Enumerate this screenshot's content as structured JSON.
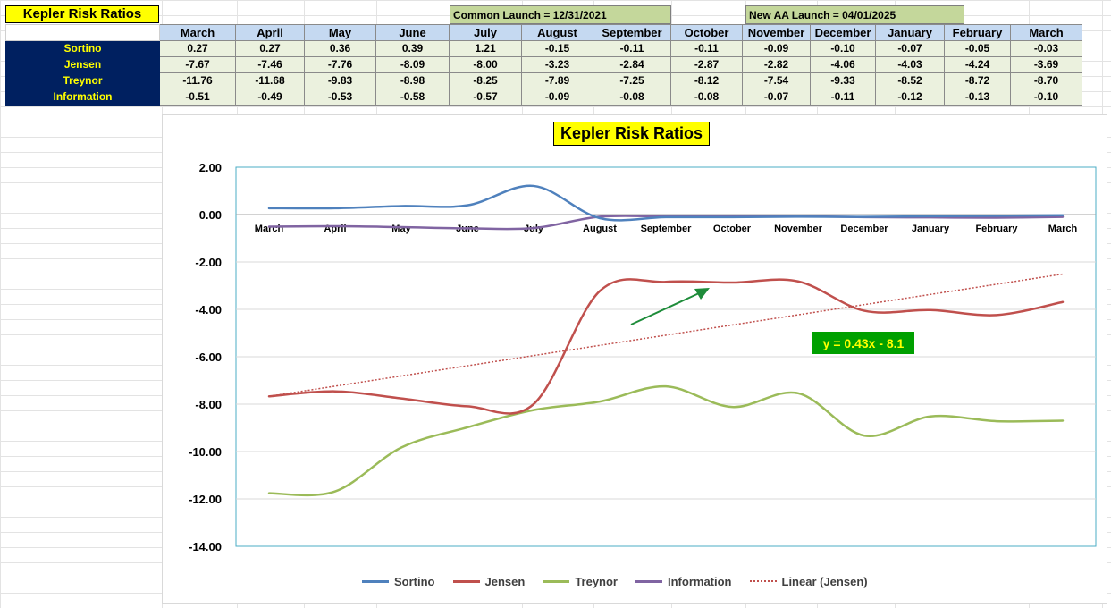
{
  "sheet": {
    "title": "Kepler Risk Ratios",
    "common_launch": "Common Launch = 12/31/2021",
    "new_aa_launch": "New AA Launch = 04/01/2025",
    "months": [
      "March",
      "April",
      "May",
      "June",
      "July",
      "August",
      "September",
      "October",
      "November",
      "December",
      "January",
      "February",
      "March"
    ],
    "rows": [
      {
        "label": "Sortino",
        "values": [
          "0.27",
          "0.27",
          "0.36",
          "0.39",
          "1.21",
          "-0.15",
          "-0.11",
          "-0.11",
          "-0.09",
          "-0.10",
          "-0.07",
          "-0.05",
          "-0.03"
        ]
      },
      {
        "label": "Jensen",
        "values": [
          "-7.67",
          "-7.46",
          "-7.76",
          "-8.09",
          "-8.00",
          "-3.23",
          "-2.84",
          "-2.87",
          "-2.82",
          "-4.06",
          "-4.03",
          "-4.24",
          "-3.69"
        ]
      },
      {
        "label": "Treynor",
        "values": [
          "-11.76",
          "-11.68",
          "-9.83",
          "-8.98",
          "-8.25",
          "-7.89",
          "-7.25",
          "-8.12",
          "-7.54",
          "-9.33",
          "-8.52",
          "-8.72",
          "-8.70"
        ]
      },
      {
        "label": "Information",
        "values": [
          "-0.51",
          "-0.49",
          "-0.53",
          "-0.58",
          "-0.57",
          "-0.09",
          "-0.08",
          "-0.08",
          "-0.07",
          "-0.11",
          "-0.12",
          "-0.13",
          "-0.10"
        ]
      }
    ]
  },
  "chart_data": {
    "type": "line",
    "title": "Kepler Risk Ratios",
    "categories": [
      "March",
      "April",
      "May",
      "June",
      "July",
      "August",
      "September",
      "October",
      "November",
      "December",
      "January",
      "February",
      "March"
    ],
    "ylim": [
      -14,
      2
    ],
    "yticks": [
      "2.00",
      "0.00",
      "-2.00",
      "-4.00",
      "-6.00",
      "-8.00",
      "-10.00",
      "-12.00",
      "-14.00"
    ],
    "ytick_values": [
      2,
      0,
      -2,
      -4,
      -6,
      -8,
      -10,
      -12,
      -14
    ],
    "grid": true,
    "legend_position": "bottom",
    "series": [
      {
        "name": "Sortino",
        "color": "#4f81bd",
        "values": [
          0.27,
          0.27,
          0.36,
          0.39,
          1.21,
          -0.15,
          -0.11,
          -0.11,
          -0.09,
          -0.1,
          -0.07,
          -0.05,
          -0.03
        ]
      },
      {
        "name": "Jensen",
        "color": "#c0504d",
        "values": [
          -7.67,
          -7.46,
          -7.76,
          -8.09,
          -8.0,
          -3.23,
          -2.84,
          -2.87,
          -2.82,
          -4.06,
          -4.03,
          -4.24,
          -3.69
        ]
      },
      {
        "name": "Treynor",
        "color": "#9bbb59",
        "values": [
          -11.76,
          -11.68,
          -9.83,
          -8.98,
          -8.25,
          -7.89,
          -7.25,
          -8.12,
          -7.54,
          -9.33,
          -8.52,
          -8.72,
          -8.7
        ]
      },
      {
        "name": "Information",
        "color": "#8064a2",
        "values": [
          -0.51,
          -0.49,
          -0.53,
          -0.58,
          -0.57,
          -0.09,
          -0.08,
          -0.08,
          -0.07,
          -0.11,
          -0.12,
          -0.13,
          -0.1
        ]
      }
    ],
    "trendline": {
      "name": "Linear (Jensen)",
      "color": "#c0504d",
      "style": "dotted",
      "slope": 0.43,
      "intercept": -8.1,
      "equation_label": "y = 0.43x - 8.1",
      "label_bg": "#00a000",
      "label_color": "#ffff00"
    },
    "arrow_color": "#1e8c3a"
  }
}
